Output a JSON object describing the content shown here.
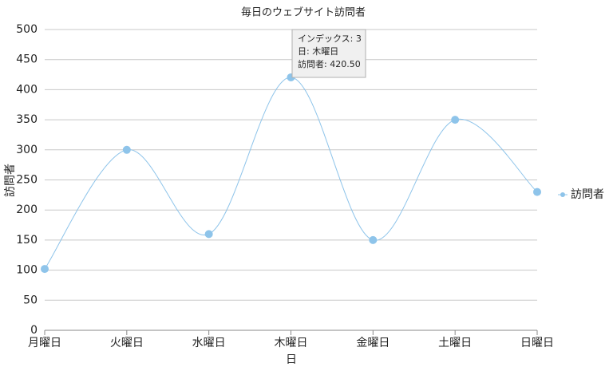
{
  "chart_data": {
    "type": "line",
    "title": "毎日のウェブサイト訪問者",
    "x_label": "日",
    "y_label": "訪問者",
    "categories": [
      "月曜日",
      "火曜日",
      "水曜日",
      "木曜日",
      "金曜日",
      "土曜日",
      "日曜日"
    ],
    "series": [
      {
        "name": "訪問者",
        "color": "#8ec4ea",
        "values": [
          102,
          300,
          160,
          420.5,
          150,
          350,
          230
        ]
      }
    ],
    "ylim": [
      0,
      500
    ],
    "yticks": [
      0,
      50,
      100,
      150,
      200,
      250,
      300,
      350,
      400,
      450,
      500
    ],
    "grid": true,
    "smooth": true,
    "legend": "right",
    "tooltip": [
      "インデックス: 3",
      "日: 木曜日",
      "訪問者: 420.50"
    ]
  }
}
